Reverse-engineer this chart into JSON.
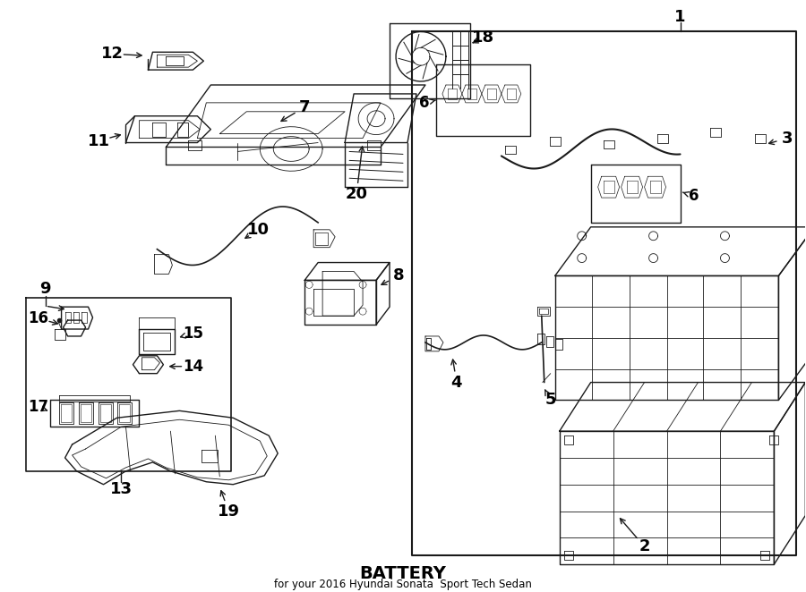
{
  "title": "BATTERY",
  "subtitle": "for your 2016 Hyundai Sonata  Sport Tech Sedan",
  "bg_color": "#ffffff",
  "line_color": "#1a1a1a",
  "text_color": "#000000",
  "fig_width": 9.0,
  "fig_height": 6.62,
  "dpi": 100
}
